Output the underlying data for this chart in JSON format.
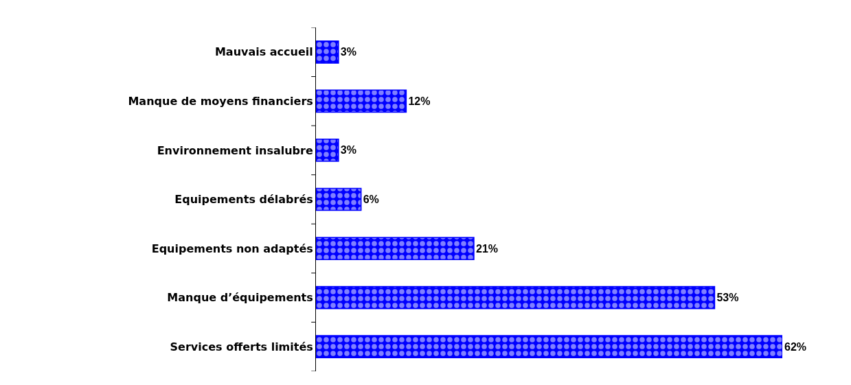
{
  "chart_data": {
    "type": "bar",
    "orientation": "horizontal",
    "categories": [
      "Mauvais accueil",
      "Manque de moyens financiers",
      "Environnement insalubre",
      "Equipements délabrés",
      "Equipements non adaptés",
      "Manque d’équipements",
      "Services offerts limités"
    ],
    "values": [
      3,
      12,
      3,
      6,
      21,
      53,
      62
    ],
    "value_labels": [
      "3%",
      "12%",
      "3%",
      "6%",
      "21%",
      "53%",
      "62%"
    ],
    "color": "#0000ff"
  }
}
